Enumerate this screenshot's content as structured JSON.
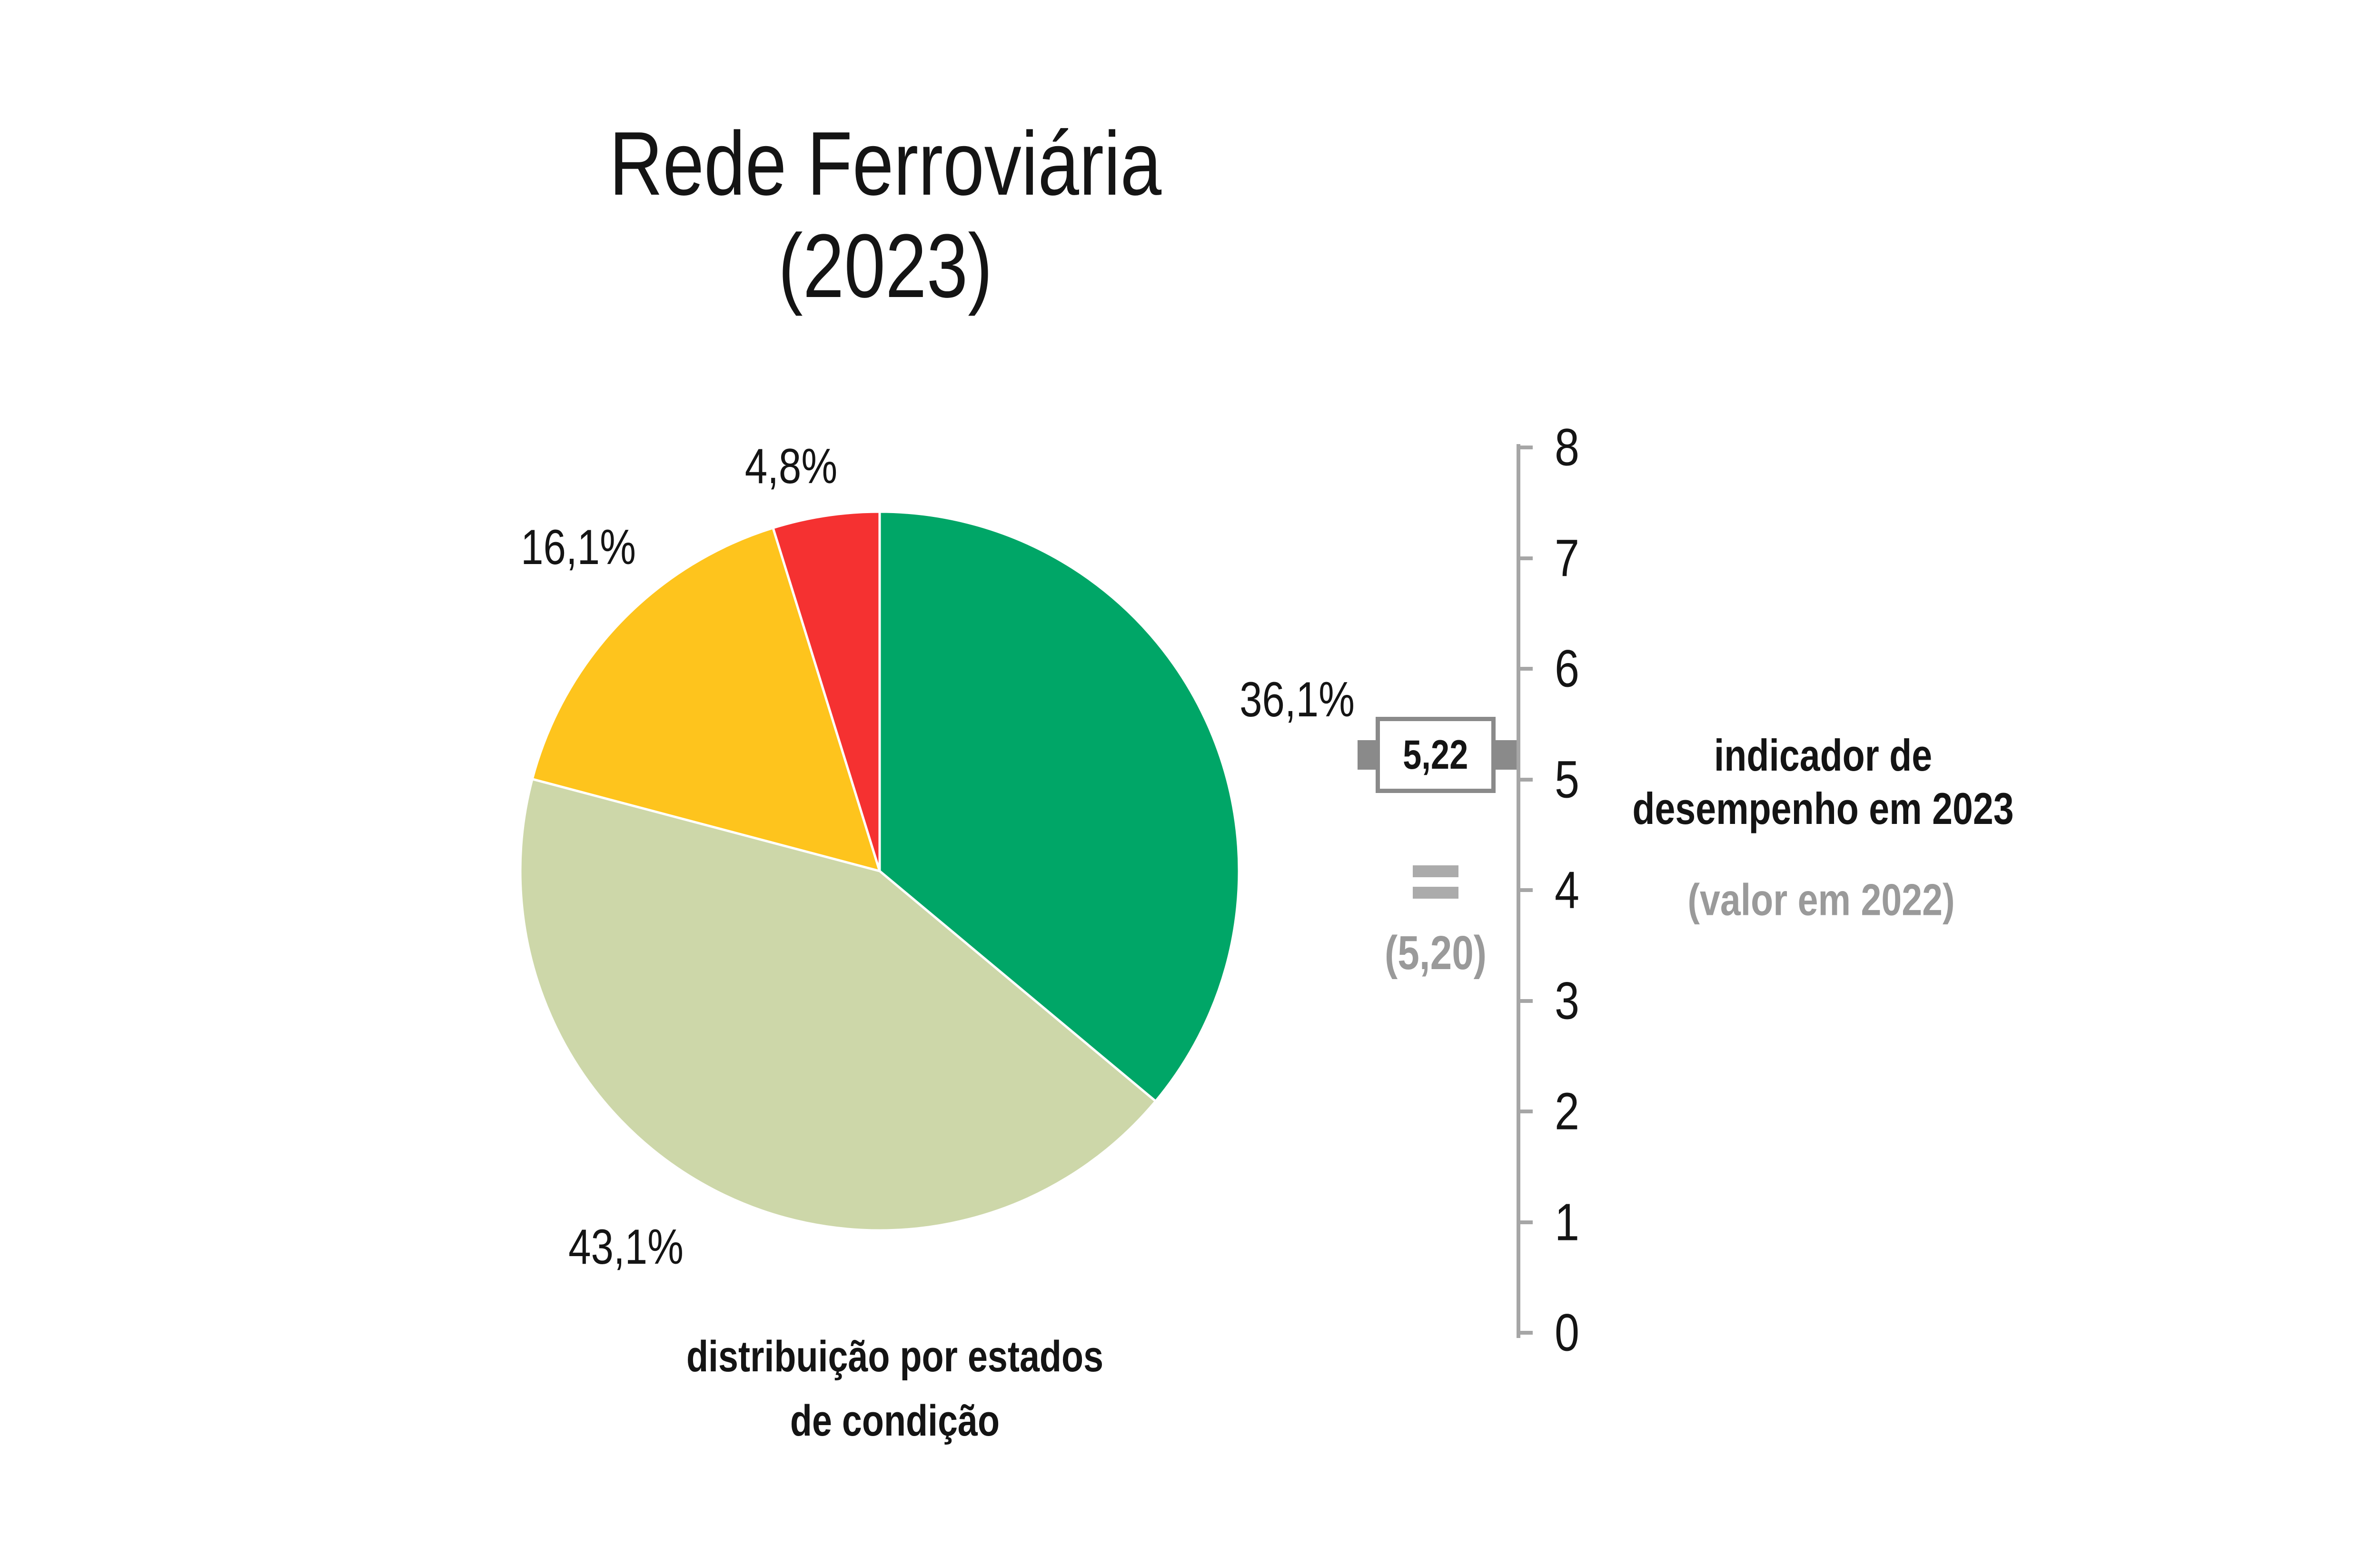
{
  "page": {
    "background": "#ffffff"
  },
  "colors": {
    "text": "#141414",
    "gray_text": "#9a9a9a",
    "axis": "#a6a6a6",
    "box": "#8a8a8a",
    "equals": "#ababab"
  },
  "title": {
    "text": "Rede Ferroviária\n(2023)"
  },
  "pie_caption": {
    "text": "distribuição por estados\nde condição"
  },
  "gauge_caption": {
    "text_bold": "indicador de\ndesempenho em 2023",
    "text_gray": "(valor em 2022)"
  },
  "chart_data": [
    {
      "type": "pie",
      "title": "Rede Ferroviária (2023)",
      "caption": "distribuição por estados de condição",
      "direction": "clockwise",
      "start_angle_deg": 0,
      "slice_stroke_color": "#ffffff",
      "slices": [
        {
          "name": "green",
          "label": "36,1%",
          "value": 36.1,
          "color": "#00a667"
        },
        {
          "name": "sage",
          "label": "43,1%",
          "value": 43.1,
          "color": "#cdd7a9"
        },
        {
          "name": "yellow",
          "label": "16,1%",
          "value": 16.1,
          "color": "#fec41d"
        },
        {
          "name": "red",
          "label": "4,8%",
          "value": 4.8,
          "color": "#f53131"
        }
      ]
    },
    {
      "type": "gauge",
      "axis": {
        "min": 0,
        "max": 8,
        "tick_step": 1,
        "tick_labels": [
          "0",
          "1",
          "2",
          "3",
          "4",
          "5",
          "6",
          "7",
          "8"
        ]
      },
      "indicator": {
        "value": 5.22,
        "value_label": "5,22",
        "equals_label": "=",
        "previous_value": 5.2,
        "previous_value_label": "(5,20)"
      },
      "caption": "indicador de desempenho em 2023",
      "caption_secondary": "(valor em 2022)"
    }
  ]
}
